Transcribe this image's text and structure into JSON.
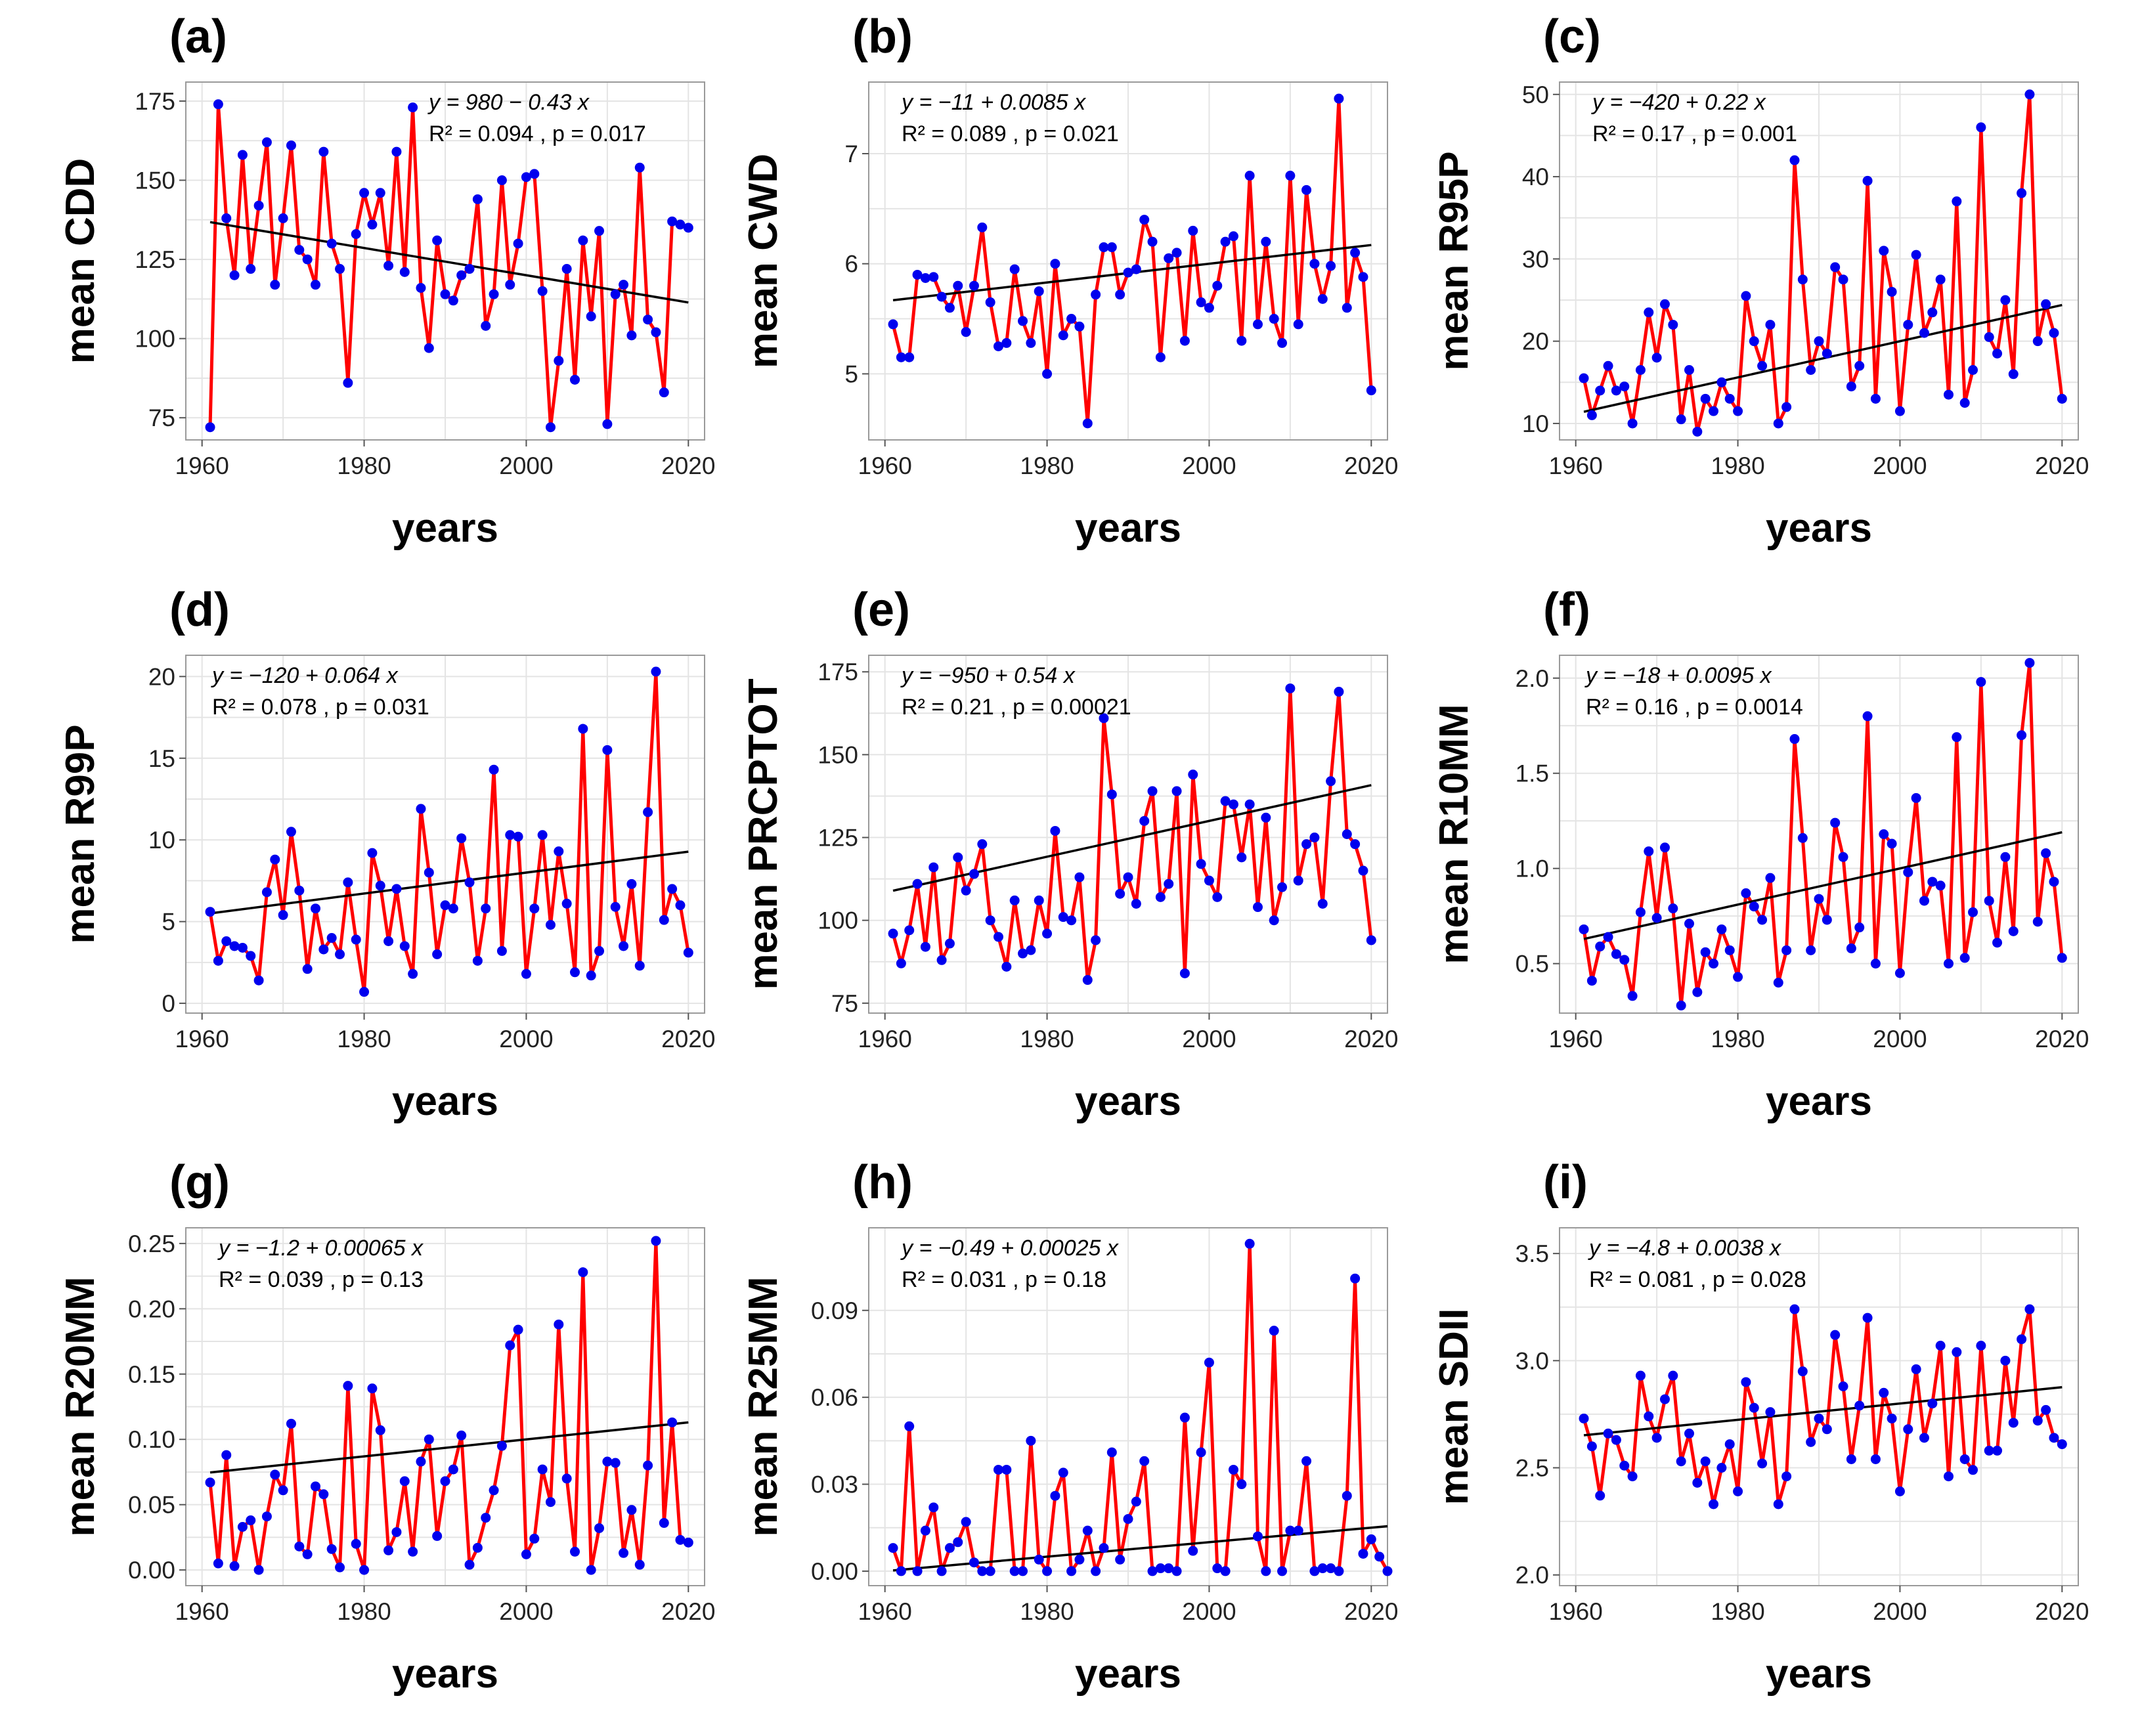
{
  "figure": {
    "colors": {
      "series": "#ff0000",
      "points": "#0000ee",
      "trend": "#000000"
    }
  },
  "chart_data": [
    {
      "type": "line",
      "panel": "(a)",
      "ylabel": "mean CDD",
      "xlabel": "years",
      "eq_main": "y = 980 − 0.43 x",
      "eq_stats": "R² = 0.094 , p = 0.017",
      "xlim": [
        1958,
        2022
      ],
      "ylim": [
        68,
        181
      ],
      "xticks": [
        1960,
        1980,
        2000,
        2020
      ],
      "yticks": [
        75,
        100,
        125,
        150,
        175
      ],
      "trend": {
        "intercept": 980,
        "slope": -0.43
      },
      "x_start": 1961,
      "values": [
        72,
        174,
        138,
        120,
        158,
        122,
        142,
        162,
        117,
        138,
        161,
        128,
        125,
        117,
        159,
        130,
        122,
        86,
        133,
        146,
        136,
        146,
        123,
        159,
        121,
        173,
        116,
        97,
        131,
        114,
        112,
        120,
        122,
        144,
        104,
        114,
        150,
        117,
        130,
        151,
        152,
        115,
        72,
        93,
        122,
        87,
        131,
        107,
        134,
        73,
        114,
        117,
        101,
        154,
        106,
        102,
        83,
        137,
        136,
        135
      ]
    },
    {
      "type": "line",
      "panel": "(b)",
      "ylabel": "mean CWD",
      "xlabel": "years",
      "eq_main": "y = −11 + 0.0085 x",
      "eq_stats": "R² = 0.089 , p = 0.021",
      "xlim": [
        1958,
        2022
      ],
      "ylim": [
        4.4,
        7.65
      ],
      "xticks": [
        1960,
        1980,
        2000,
        2020
      ],
      "yticks": [
        5,
        6,
        7
      ],
      "trend": {
        "intercept": -11,
        "slope": 0.0085
      },
      "x_start": 1961,
      "values": [
        5.45,
        5.15,
        5.15,
        5.9,
        5.87,
        5.88,
        5.7,
        5.6,
        5.8,
        5.38,
        5.8,
        6.33,
        5.65,
        5.25,
        5.28,
        5.95,
        5.48,
        5.28,
        5.75,
        5.0,
        6.0,
        5.35,
        5.5,
        5.43,
        4.55,
        5.72,
        6.15,
        6.15,
        5.72,
        5.92,
        5.95,
        6.4,
        6.2,
        5.15,
        6.05,
        6.1,
        5.3,
        6.3,
        5.65,
        5.6,
        5.8,
        6.2,
        6.25,
        5.3,
        6.8,
        5.45,
        6.2,
        5.5,
        5.28,
        6.8,
        5.45,
        6.67,
        6.0,
        5.68,
        5.98,
        7.5,
        5.6,
        6.1,
        5.88,
        4.85
      ]
    },
    {
      "type": "line",
      "panel": "(c)",
      "ylabel": "mean R95P",
      "xlabel": "years",
      "eq_main": "y = −420 + 0.22 x",
      "eq_stats": "R² = 0.17 , p = 0.001",
      "xlim": [
        1958,
        2022
      ],
      "ylim": [
        8,
        51.5
      ],
      "xticks": [
        1960,
        1980,
        2000,
        2020
      ],
      "yticks": [
        10,
        20,
        30,
        40,
        50
      ],
      "trend": {
        "intercept": -420,
        "slope": 0.22
      },
      "x_start": 1961,
      "values": [
        15.5,
        11.0,
        14.0,
        17.0,
        14.0,
        14.5,
        10.0,
        16.5,
        23.5,
        18.0,
        24.5,
        22.0,
        10.5,
        16.5,
        9.0,
        13.0,
        11.5,
        15.0,
        13.0,
        11.5,
        25.5,
        20.0,
        17.0,
        22.0,
        10.0,
        12.0,
        42.0,
        27.5,
        16.5,
        20.0,
        18.5,
        29.0,
        27.5,
        14.5,
        17.0,
        39.5,
        13.0,
        31.0,
        26.0,
        11.5,
        22.0,
        30.5,
        21.0,
        23.5,
        27.5,
        13.5,
        37.0,
        12.5,
        16.5,
        46.0,
        20.5,
        18.5,
        25.0,
        16.0,
        38.0,
        50.0,
        20.0,
        24.5,
        21.0,
        13.0
      ]
    },
    {
      "type": "line",
      "panel": "(d)",
      "ylabel": "mean R99P",
      "xlabel": "years",
      "eq_main": "y = −120 + 0.064 x",
      "eq_stats": "R² = 0.078 , p = 0.031",
      "xlim": [
        1958,
        2022
      ],
      "ylim": [
        -0.6,
        21.3
      ],
      "xticks": [
        1960,
        1980,
        2000,
        2020
      ],
      "yticks": [
        0,
        5,
        10,
        15,
        20
      ],
      "trend": {
        "intercept": -120,
        "slope": 0.064
      },
      "x_start": 1961,
      "values": [
        5.6,
        2.6,
        3.8,
        3.5,
        3.4,
        2.9,
        1.4,
        6.8,
        8.8,
        5.4,
        10.5,
        6.9,
        2.1,
        5.8,
        3.3,
        4.0,
        3.0,
        7.4,
        3.9,
        0.7,
        9.2,
        7.2,
        3.8,
        7.0,
        3.5,
        1.8,
        11.9,
        8.0,
        3.0,
        6.0,
        5.8,
        10.1,
        7.4,
        2.6,
        5.8,
        14.3,
        3.2,
        10.3,
        10.2,
        1.8,
        5.8,
        10.3,
        4.8,
        9.3,
        6.1,
        1.9,
        16.8,
        1.7,
        3.2,
        15.5,
        5.9,
        3.5,
        7.3,
        2.3,
        11.7,
        20.3,
        5.1,
        7.0,
        6.0,
        3.1
      ]
    },
    {
      "type": "line",
      "panel": "(e)",
      "ylabel": "mean PRCPTOT",
      "xlabel": "years",
      "eq_main": "y = −950 + 0.54 x",
      "eq_stats": "R² = 0.21 , p = 0.00021",
      "xlim": [
        1958,
        2022
      ],
      "ylim": [
        72,
        180
      ],
      "xticks": [
        1960,
        1980,
        2000,
        2020
      ],
      "yticks": [
        75,
        100,
        125,
        150,
        175
      ],
      "trend": {
        "intercept": -950,
        "slope": 0.54
      },
      "x_start": 1961,
      "values": [
        96,
        87,
        97,
        111,
        92,
        116,
        88,
        93,
        119,
        109,
        114,
        123,
        100,
        95,
        86,
        106,
        90,
        91,
        106,
        96,
        127,
        101,
        100,
        113,
        82,
        94,
        161,
        138,
        108,
        113,
        105,
        130,
        139,
        107,
        111,
        139,
        84,
        144,
        117,
        112,
        107,
        136,
        135,
        119,
        135,
        104,
        131,
        100,
        110,
        170,
        112,
        123,
        125,
        105,
        142,
        169,
        126,
        123,
        115,
        94
      ]
    },
    {
      "type": "line",
      "panel": "(f)",
      "ylabel": "mean R10MM",
      "xlabel": "years",
      "eq_main": "y = −18 + 0.0095 x",
      "eq_stats": "R² = 0.16 , p = 0.0014",
      "xlim": [
        1958,
        2022
      ],
      "ylim": [
        0.24,
        2.12
      ],
      "xticks": [
        1960,
        1980,
        2000,
        2020
      ],
      "yticks": [
        0.5,
        1.0,
        1.5,
        2.0
      ],
      "tick_format": "1dp",
      "trend": {
        "intercept": -18,
        "slope": 0.0095
      },
      "x_start": 1961,
      "values": [
        0.68,
        0.41,
        0.59,
        0.64,
        0.55,
        0.52,
        0.33,
        0.77,
        1.09,
        0.74,
        1.11,
        0.79,
        0.28,
        0.71,
        0.35,
        0.56,
        0.5,
        0.68,
        0.57,
        0.43,
        0.87,
        0.8,
        0.73,
        0.95,
        0.4,
        0.57,
        1.68,
        1.16,
        0.57,
        0.84,
        0.73,
        1.24,
        1.06,
        0.58,
        0.69,
        1.8,
        0.5,
        1.18,
        1.13,
        0.45,
        0.98,
        1.37,
        0.83,
        0.93,
        0.91,
        0.5,
        1.69,
        0.53,
        0.77,
        1.98,
        0.83,
        0.61,
        1.06,
        0.67,
        1.7,
        2.08,
        0.72,
        1.08,
        0.93,
        0.53
      ]
    },
    {
      "type": "line",
      "panel": "(g)",
      "ylabel": "mean R20MM",
      "xlabel": "years",
      "eq_main": "y = −1.2 + 0.00065 x",
      "eq_stats": "R² = 0.039 , p = 0.13",
      "xlim": [
        1958,
        2022
      ],
      "ylim": [
        -0.012,
        0.262
      ],
      "xticks": [
        1960,
        1980,
        2000,
        2020
      ],
      "yticks": [
        0.0,
        0.05,
        0.1,
        0.15,
        0.2,
        0.25
      ],
      "tick_format": "2dp",
      "trend": {
        "intercept": -1.2,
        "slope": 0.00065
      },
      "x_start": 1961,
      "values": [
        0.067,
        0.005,
        0.088,
        0.003,
        0.033,
        0.038,
        0.0,
        0.041,
        0.073,
        0.061,
        0.112,
        0.018,
        0.012,
        0.064,
        0.058,
        0.016,
        0.002,
        0.141,
        0.02,
        0.0,
        0.139,
        0.107,
        0.015,
        0.029,
        0.068,
        0.014,
        0.083,
        0.1,
        0.026,
        0.068,
        0.077,
        0.103,
        0.004,
        0.017,
        0.04,
        0.061,
        0.095,
        0.172,
        0.184,
        0.012,
        0.024,
        0.077,
        0.052,
        0.188,
        0.07,
        0.014,
        0.228,
        0.0,
        0.032,
        0.083,
        0.082,
        0.013,
        0.046,
        0.004,
        0.08,
        0.252,
        0.036,
        0.113,
        0.023,
        0.021
      ]
    },
    {
      "type": "line",
      "panel": "(h)",
      "ylabel": "mean R25MM",
      "xlabel": "years",
      "eq_main": "y = −0.49 + 0.00025 x",
      "eq_stats": "R² = 0.031 , p = 0.18",
      "xlim": [
        1958,
        2022
      ],
      "ylim": [
        -0.005,
        0.1185
      ],
      "xticks": [
        1960,
        1980,
        2000,
        2020
      ],
      "yticks": [
        0.0,
        0.03,
        0.06,
        0.09
      ],
      "tick_format": "2dp",
      "trend": {
        "intercept": -0.49,
        "slope": 0.00025
      },
      "x_start": 1961,
      "values": [
        0.008,
        0.0,
        0.05,
        0.0,
        0.014,
        0.022,
        0.0,
        0.008,
        0.01,
        0.017,
        0.003,
        0.0,
        0.0,
        0.035,
        0.035,
        0.0,
        0.0,
        0.045,
        0.004,
        0.0,
        0.026,
        0.034,
        0.0,
        0.004,
        0.014,
        0.0,
        0.008,
        0.041,
        0.004,
        0.018,
        0.024,
        0.038,
        0.0,
        0.001,
        0.001,
        0.0,
        0.053,
        0.007,
        0.041,
        0.072,
        0.001,
        0.0,
        0.035,
        0.03,
        0.113,
        0.012,
        0.0,
        0.083,
        0.0,
        0.014,
        0.014,
        0.038,
        0.0,
        0.001,
        0.001,
        0.0,
        0.026,
        0.101,
        0.006,
        0.011,
        0.005,
        0.0
      ]
    },
    {
      "type": "line",
      "panel": "(i)",
      "ylabel": "mean SDII",
      "xlabel": "years",
      "eq_main": "y = −4.8 + 0.0038 x",
      "eq_stats": "R² = 0.081 , p = 0.028",
      "xlim": [
        1958,
        2022
      ],
      "ylim": [
        1.95,
        3.62
      ],
      "xticks": [
        1960,
        1980,
        2000,
        2020
      ],
      "yticks": [
        2.0,
        2.5,
        3.0,
        3.5
      ],
      "tick_format": "1dp",
      "trend": {
        "intercept": -4.8,
        "slope": 0.0038
      },
      "x_start": 1961,
      "values": [
        2.73,
        2.6,
        2.37,
        2.66,
        2.63,
        2.51,
        2.46,
        2.93,
        2.74,
        2.64,
        2.82,
        2.93,
        2.53,
        2.66,
        2.43,
        2.53,
        2.33,
        2.5,
        2.61,
        2.39,
        2.9,
        2.78,
        2.52,
        2.76,
        2.33,
        2.46,
        3.24,
        2.95,
        2.62,
        2.73,
        2.68,
        3.12,
        2.88,
        2.54,
        2.79,
        3.2,
        2.54,
        2.85,
        2.73,
        2.39,
        2.68,
        2.96,
        2.64,
        2.8,
        3.07,
        2.46,
        3.04,
        2.54,
        2.49,
        3.07,
        2.58,
        2.58,
        3.0,
        2.71,
        3.1,
        3.24,
        2.72,
        2.77,
        2.64,
        2.61
      ]
    }
  ]
}
